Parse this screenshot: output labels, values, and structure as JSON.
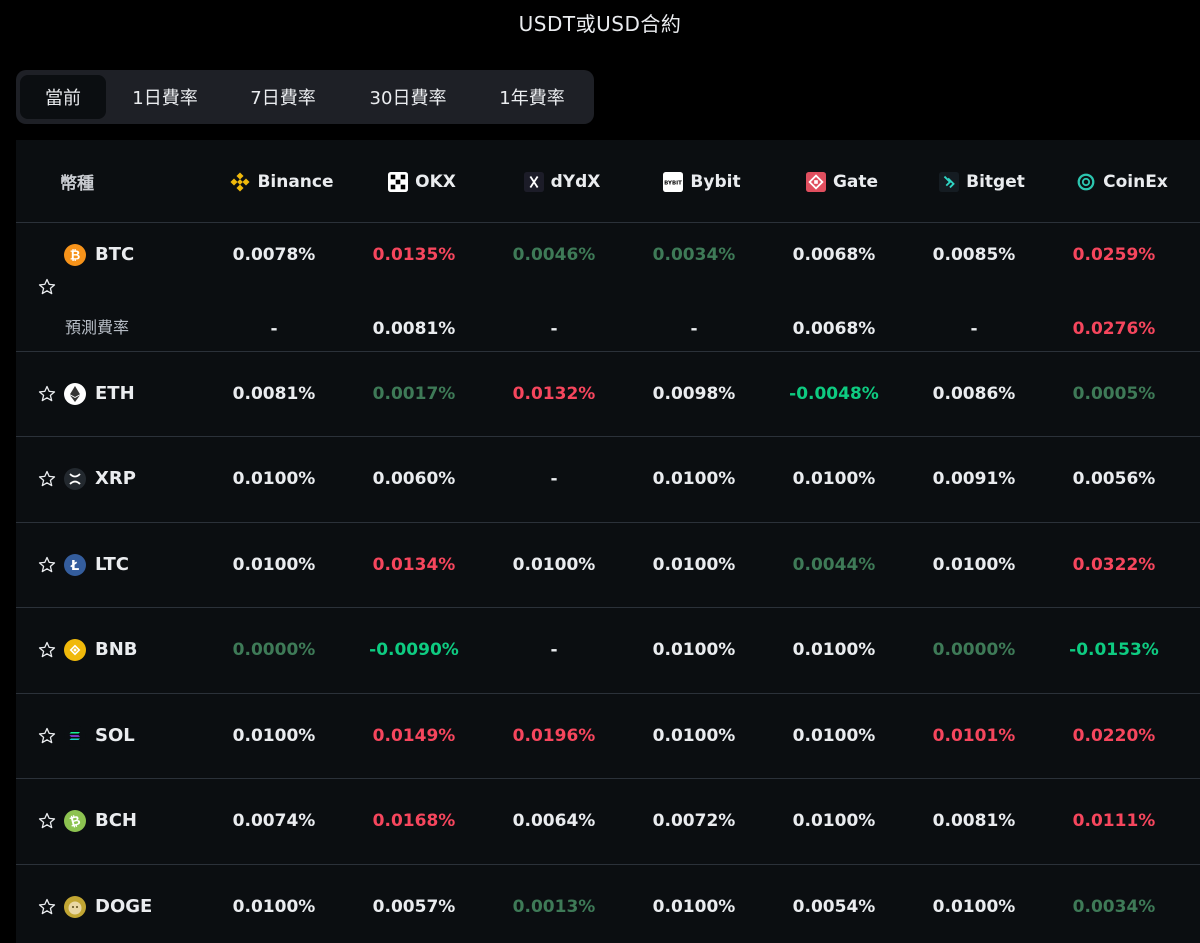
{
  "title": "USDT或USD合約",
  "tabs": [
    {
      "label": "當前",
      "active": true
    },
    {
      "label": "1日費率",
      "active": false
    },
    {
      "label": "7日費率",
      "active": false
    },
    {
      "label": "30日費率",
      "active": false
    },
    {
      "label": "1年費率",
      "active": false
    }
  ],
  "header": {
    "coin": "幣種",
    "exchanges": [
      "Binance",
      "OKX",
      "dYdX",
      "Bybit",
      "Gate",
      "Bitget",
      "CoinEx"
    ]
  },
  "rows": [
    {
      "symbol": "BTC",
      "icon": "btc-icon",
      "rates": [
        "0.0078%",
        "0.0135%",
        "0.0046%",
        "0.0034%",
        "0.0068%",
        "0.0085%",
        "0.0259%"
      ],
      "predicted_label": "預測費率",
      "predicted": [
        "-",
        "0.0081%",
        "-",
        "-",
        "0.0068%",
        "-",
        "0.0276%"
      ]
    },
    {
      "symbol": "ETH",
      "icon": "eth-icon",
      "rates": [
        "0.0081%",
        "0.0017%",
        "0.0132%",
        "0.0098%",
        "-0.0048%",
        "0.0086%",
        "0.0005%"
      ]
    },
    {
      "symbol": "XRP",
      "icon": "xrp-icon",
      "rates": [
        "0.0100%",
        "0.0060%",
        "-",
        "0.0100%",
        "0.0100%",
        "0.0091%",
        "0.0056%"
      ]
    },
    {
      "symbol": "LTC",
      "icon": "ltc-icon",
      "rates": [
        "0.0100%",
        "0.0134%",
        "0.0100%",
        "0.0100%",
        "0.0044%",
        "0.0100%",
        "0.0322%"
      ]
    },
    {
      "symbol": "BNB",
      "icon": "bnb-icon",
      "rates": [
        "0.0000%",
        "-0.0090%",
        "-",
        "0.0100%",
        "0.0100%",
        "0.0000%",
        "-0.0153%"
      ]
    },
    {
      "symbol": "SOL",
      "icon": "sol-icon",
      "rates": [
        "0.0100%",
        "0.0149%",
        "0.0196%",
        "0.0100%",
        "0.0100%",
        "0.0101%",
        "0.0220%"
      ]
    },
    {
      "symbol": "BCH",
      "icon": "bch-icon",
      "rates": [
        "0.0074%",
        "0.0168%",
        "0.0064%",
        "0.0072%",
        "0.0100%",
        "0.0081%",
        "0.0111%"
      ]
    },
    {
      "symbol": "DOGE",
      "icon": "doge-icon",
      "rates": [
        "0.0100%",
        "0.0057%",
        "0.0013%",
        "0.0100%",
        "0.0054%",
        "0.0100%",
        "0.0034%"
      ]
    }
  ],
  "colors": {
    "background": "#000000",
    "table_bg": "#0B0E11",
    "positive_high": "#F6465D",
    "negative": "#0ECB81",
    "low_dim": "#3E7A57",
    "text": "#EAECEF"
  }
}
